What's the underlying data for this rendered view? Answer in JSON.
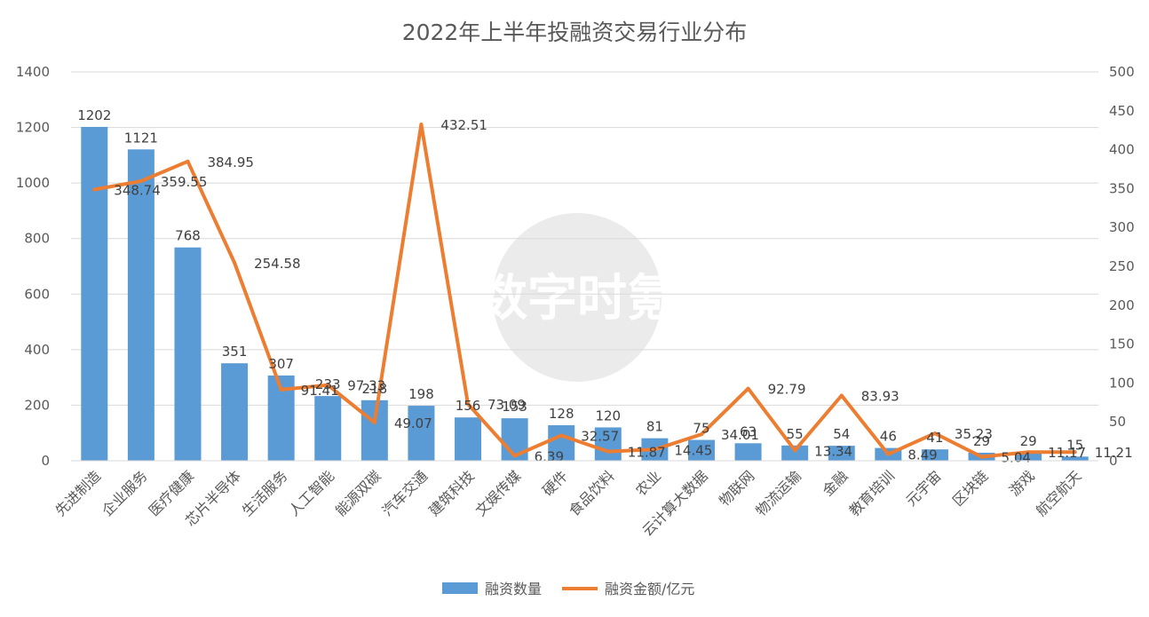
{
  "chart_data": {
    "type": "bar",
    "title": "2022年上半年投融资交易行业分布",
    "watermark": "数字时氪",
    "categories": [
      "先进制造",
      "企业服务",
      "医疗健康",
      "芯片半导体",
      "生活服务",
      "人工智能",
      "能源双碳",
      "汽车交通",
      "建筑科技",
      "文娱传媒",
      "硬件",
      "食品饮料",
      "农业",
      "云计算大数据",
      "物联网",
      "物流运输",
      "金融",
      "教育培训",
      "元宇宙",
      "区块链",
      "游戏",
      "航空航天"
    ],
    "series": [
      {
        "name": "融资数量",
        "type": "bar",
        "axis": "left",
        "color": "#5b9bd5",
        "values": [
          1202,
          1121,
          768,
          351,
          307,
          233,
          218,
          198,
          156,
          153,
          128,
          120,
          81,
          75,
          63,
          55,
          54,
          46,
          41,
          29,
          29,
          15
        ],
        "labels": [
          "1202",
          "1121",
          "768",
          "351",
          "307",
          "233",
          "218",
          "198",
          "156",
          "153",
          "128",
          "120",
          "81",
          "75",
          "63",
          "55",
          "54",
          "46",
          "41",
          "29",
          "29",
          "15"
        ]
      },
      {
        "name": "融资金额/亿元",
        "type": "line",
        "axis": "right",
        "color": "#ed7d31",
        "values": [
          348.74,
          359.55,
          384.95,
          254.58,
          91.41,
          97.33,
          49.07,
          432.51,
          73.09,
          6.39,
          32.57,
          11.87,
          14.45,
          34.01,
          92.79,
          13.34,
          83.93,
          8.49,
          35.23,
          5.04,
          11.17,
          11.21
        ],
        "labels": [
          "348.74",
          "359.55",
          "384.95",
          "254.58",
          "91.41",
          "97.33",
          "49.07",
          "432.51",
          "73.09",
          "6.39",
          "32.57",
          "11.87",
          "14.45",
          "34.01",
          "92.79",
          "13.34",
          "83.93",
          "8.49",
          "35.23",
          "5.04",
          "11.17",
          "11.21"
        ]
      }
    ],
    "ylim_left": [
      0,
      1400
    ],
    "yticks_left": [
      "0",
      "200",
      "400",
      "600",
      "800",
      "1000",
      "1200",
      "1400"
    ],
    "ylim_right": [
      0,
      500
    ],
    "yticks_right": [
      "0",
      "50",
      "100",
      "150",
      "200",
      "250",
      "300",
      "350",
      "400",
      "450",
      "500"
    ],
    "grid": true,
    "legend_position": "bottom"
  }
}
